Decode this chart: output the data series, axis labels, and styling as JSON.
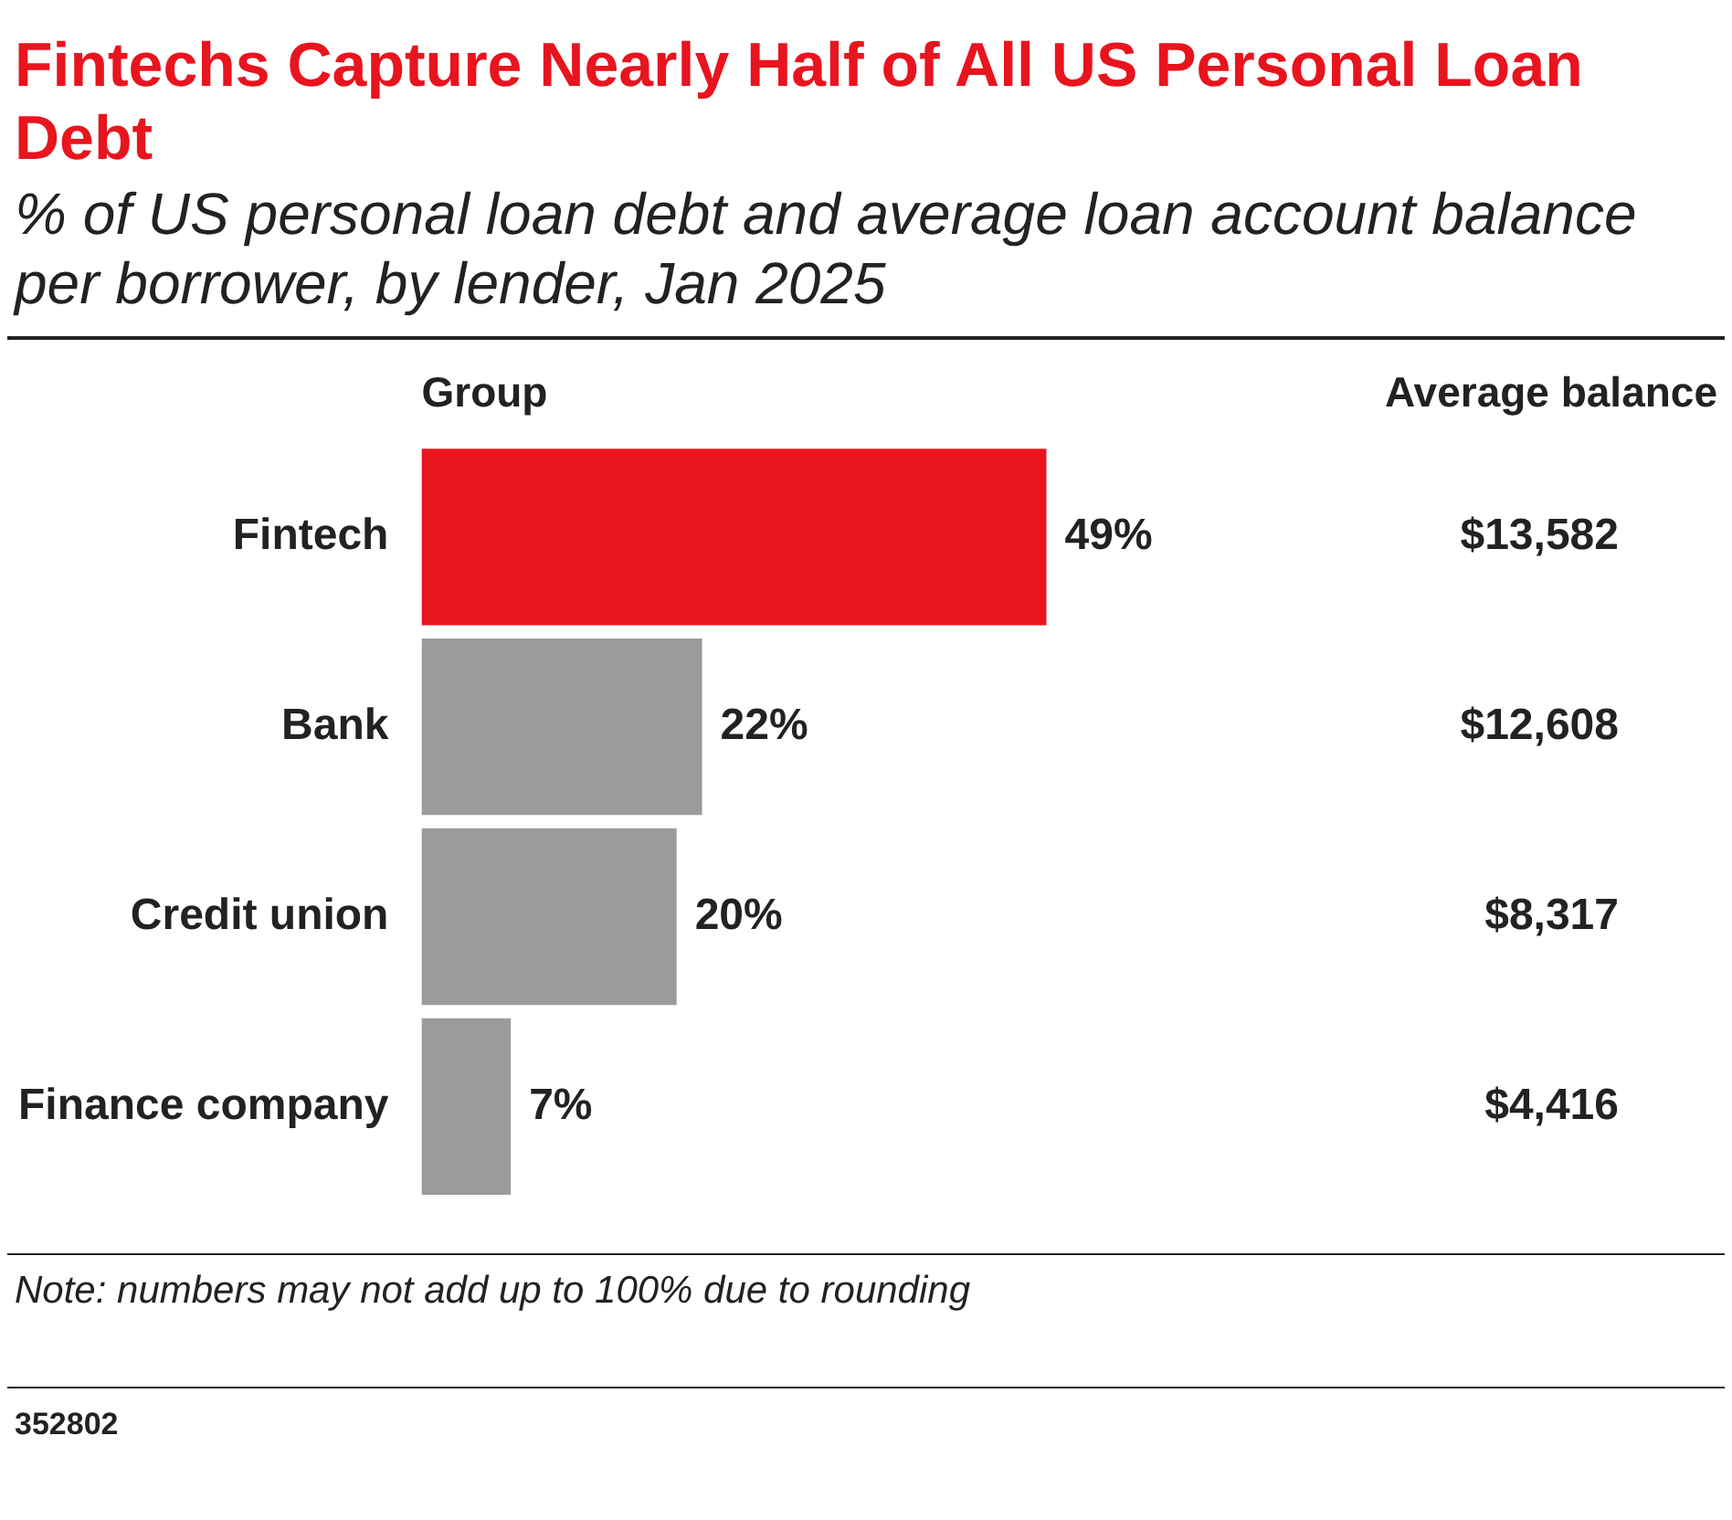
{
  "chart_data": {
    "type": "bar",
    "orientation": "horizontal",
    "title": "Fintechs Capture Nearly Half of All US Personal Loan Debt",
    "subtitle": "% of US personal loan debt and average loan account balance per borrower, by lender, Jan 2025",
    "ylabel": "Group",
    "categories": [
      "Fintech",
      "Bank",
      "Credit union",
      "Finance company"
    ],
    "values": [
      49,
      22,
      20,
      7
    ],
    "colors": [
      "#e8141e",
      "#9b9b9b",
      "#9b9b9b",
      "#9b9b9b"
    ],
    "value_labels": [
      "49%",
      "22%",
      "20%",
      "7%"
    ],
    "annotations": [
      "Average balance",
      "$13,582",
      "$12,608",
      "$8,317",
      "$4,416",
      {
        "text": "Note: numbers may not add up to 100% due to rounding"
      },
      {
        "text": "352802"
      }
    ],
    "legend": false,
    "grid": false
  }
}
